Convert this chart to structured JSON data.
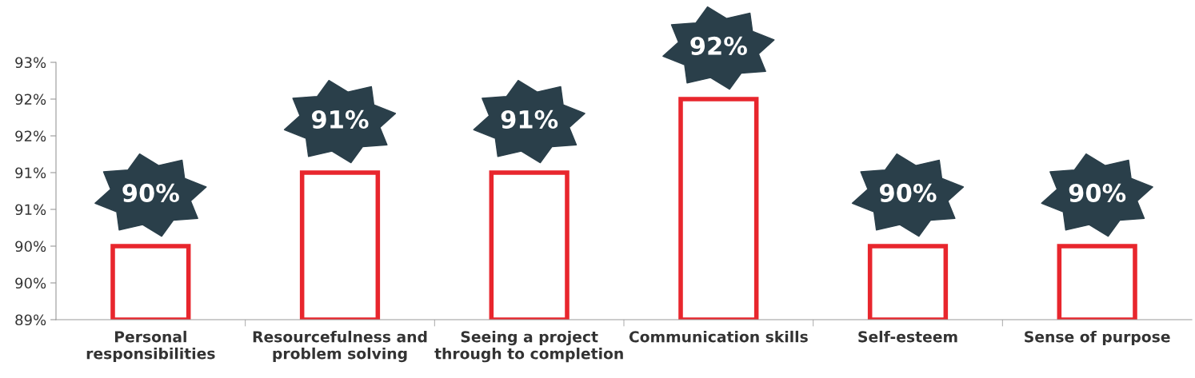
{
  "chart_data": {
    "type": "bar",
    "categories": [
      "Personal\nresponsibilities",
      "Resourcefulness and\nproblem solving",
      "Seeing a project\nthrough to completion",
      "Communication skills",
      "Self-esteem",
      "Sense of purpose"
    ],
    "values": [
      90,
      91,
      91,
      92,
      90,
      90
    ],
    "value_labels": [
      "90%",
      "91%",
      "91%",
      "92%",
      "90%",
      "90%"
    ],
    "color": "#e8262d",
    "ylim": [
      89,
      92.5
    ],
    "yticks": [
      {
        "value": 89,
        "label": "89%"
      },
      {
        "value": 89.5,
        "label": "90%"
      },
      {
        "value": 90,
        "label": "90%"
      },
      {
        "value": 90.5,
        "label": "91%"
      },
      {
        "value": 91,
        "label": "91%"
      },
      {
        "value": 91.5,
        "label": "92%"
      },
      {
        "value": 92,
        "label": "92%"
      },
      {
        "value": 92.5,
        "label": "93%"
      }
    ],
    "grid": false,
    "legend": false
  }
}
